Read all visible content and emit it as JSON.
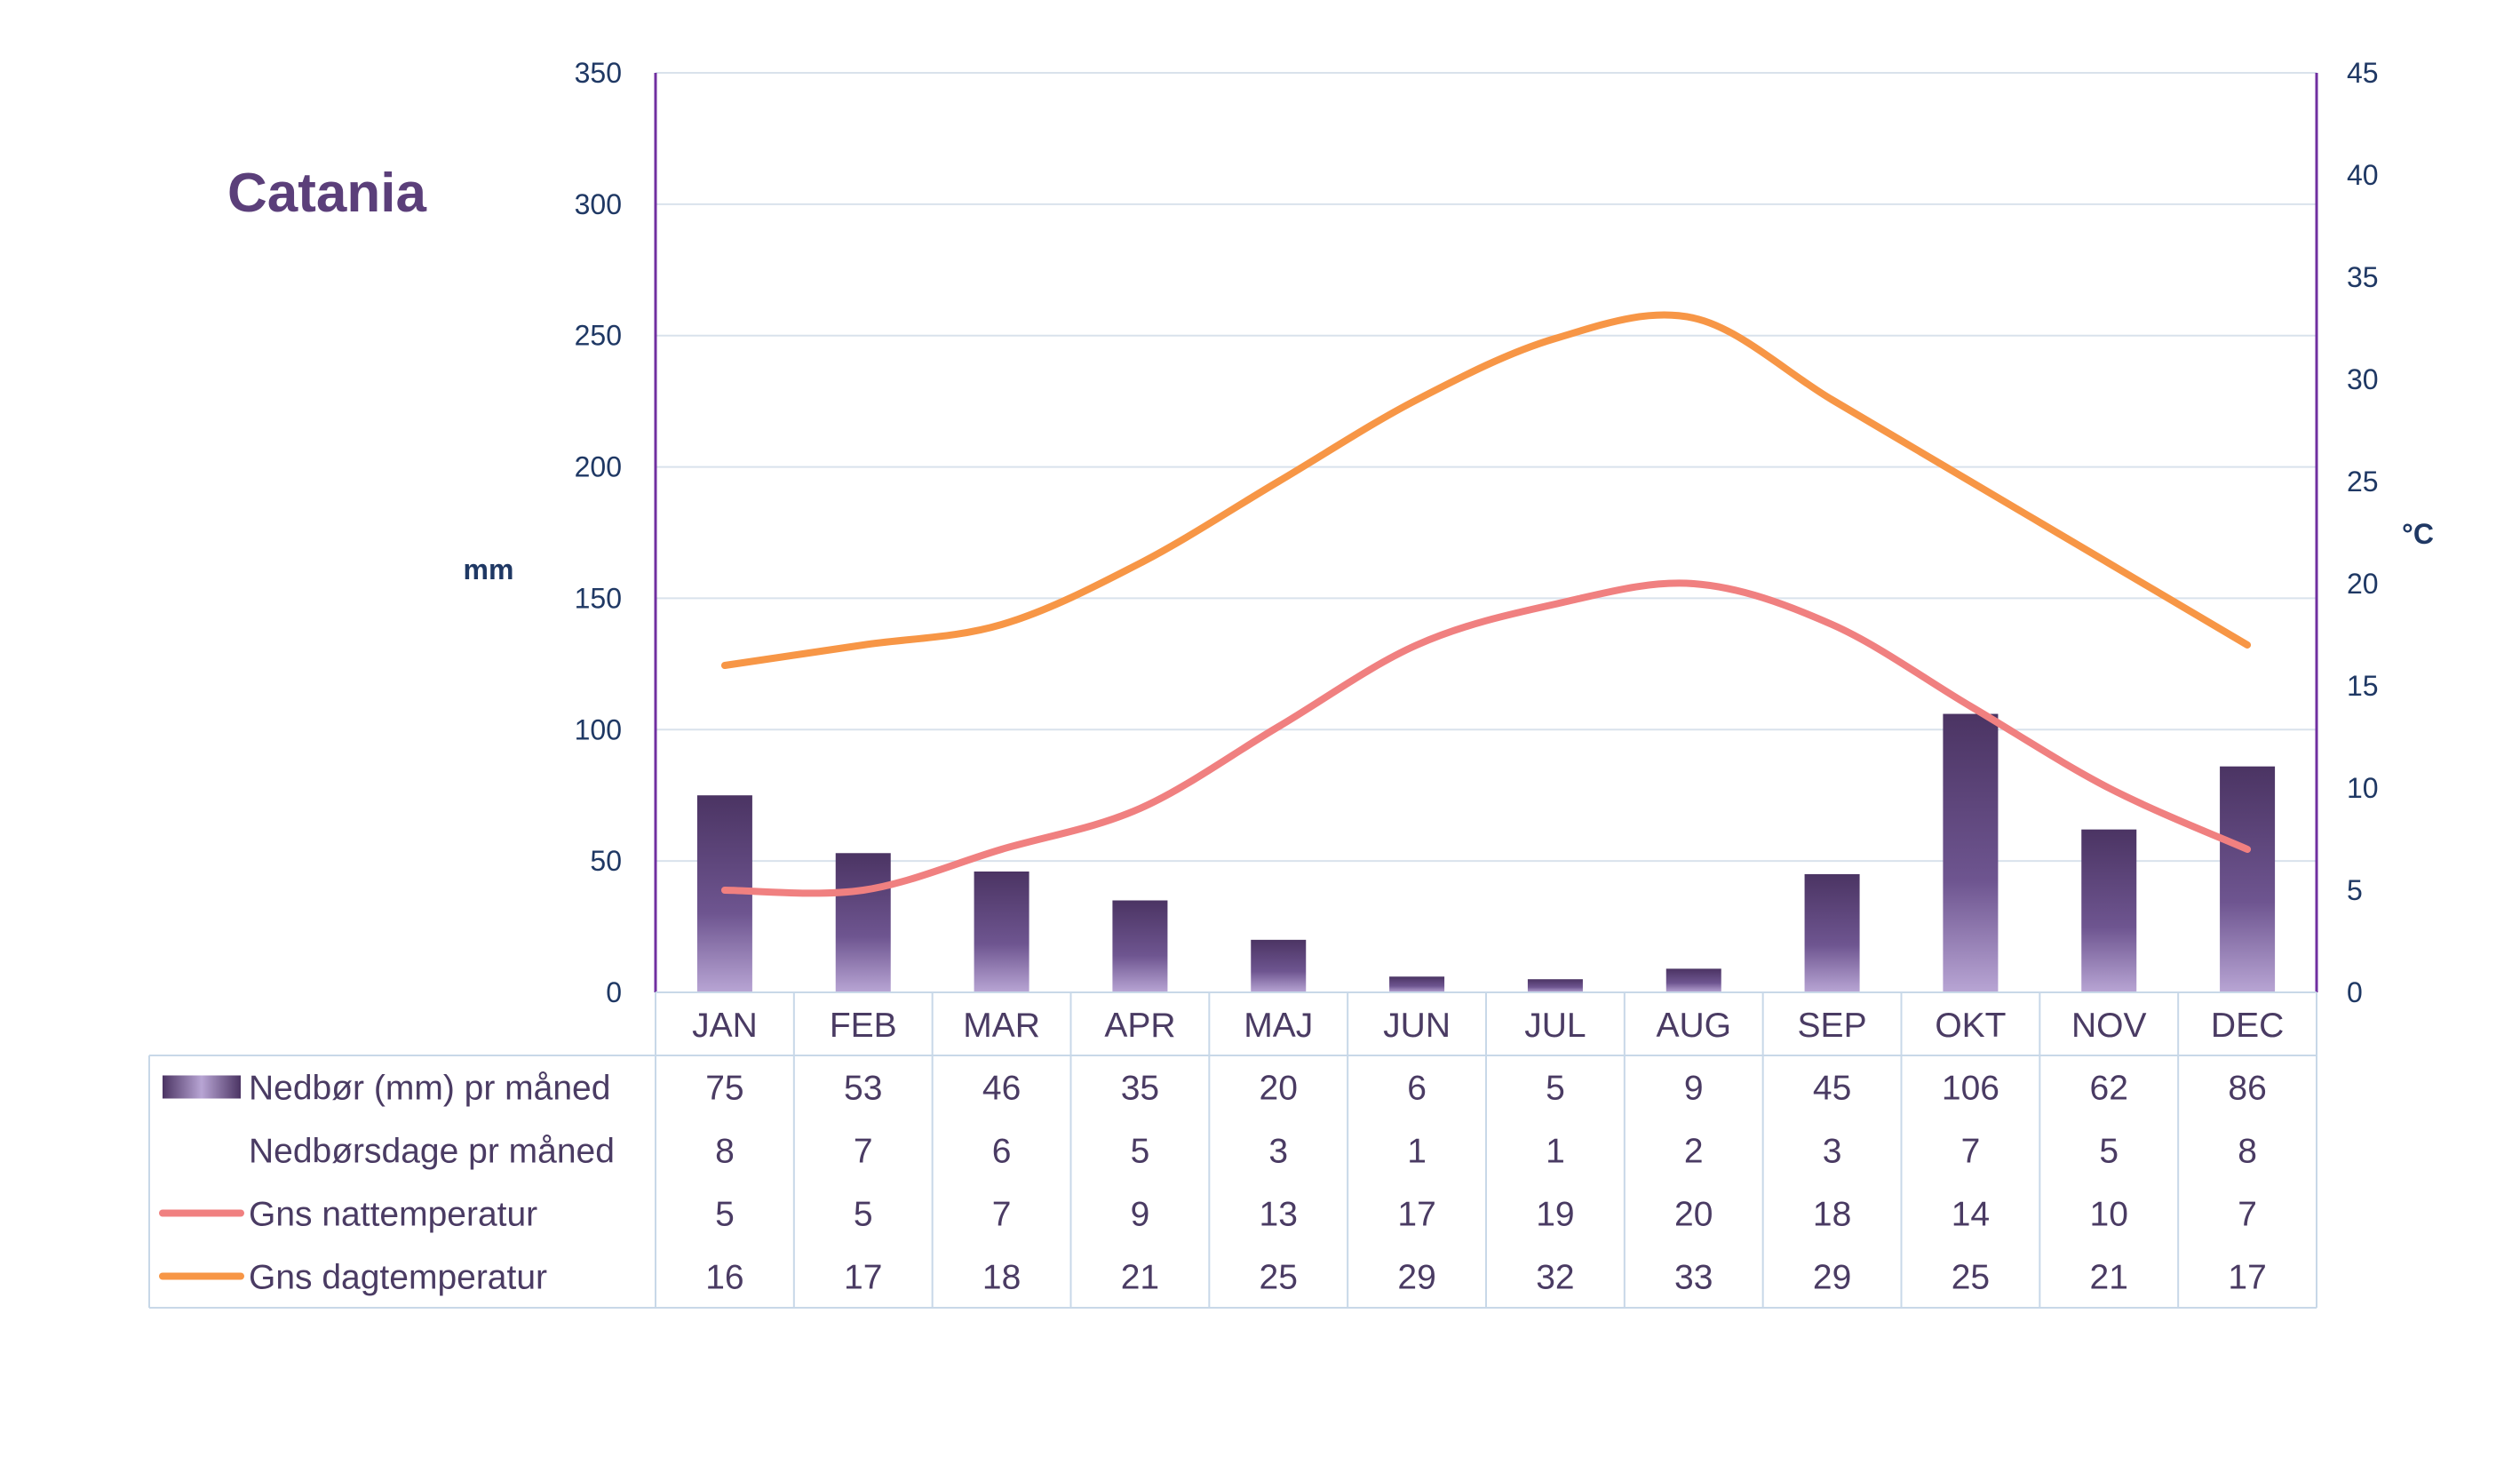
{
  "title": "Catania",
  "colors": {
    "bar": "#5b3f7a",
    "night": "#f08080",
    "day": "#f79646",
    "axis": "#7030a0",
    "grid": "#d9e2ec",
    "table": "#c8d8e8"
  },
  "chart_data": {
    "type": "bar+line",
    "title": "Catania",
    "categories": [
      "JAN",
      "FEB",
      "MAR",
      "APR",
      "MAJ",
      "JUN",
      "JUL",
      "AUG",
      "SEP",
      "OKT",
      "NOV",
      "DEC"
    ],
    "left_axis": {
      "label": "mm",
      "range": [
        0,
        350
      ],
      "ticks": [
        0,
        50,
        100,
        150,
        200,
        250,
        300,
        350
      ]
    },
    "right_axis": {
      "label": "°C",
      "range": [
        0,
        45
      ],
      "ticks": [
        0,
        5,
        10,
        15,
        20,
        25,
        30,
        35,
        40,
        45
      ]
    },
    "grid": true,
    "series": [
      {
        "name": "Nedbør (mm) pr måned",
        "type": "bar",
        "axis": "left",
        "values": [
          75,
          53,
          46,
          35,
          20,
          6,
          5,
          9,
          45,
          106,
          62,
          86
        ]
      },
      {
        "name": "Nedbørsdage pr måned",
        "type": "table",
        "values": [
          8,
          7,
          6,
          5,
          3,
          1,
          1,
          2,
          3,
          7,
          5,
          8
        ]
      },
      {
        "name": "Gns nattemperatur",
        "type": "line",
        "axis": "right",
        "values": [
          5,
          5,
          7,
          9,
          13,
          17,
          19,
          20,
          18,
          14,
          10,
          7
        ]
      },
      {
        "name": "Gns dagtemperatur",
        "type": "line",
        "axis": "right",
        "values": [
          16,
          17,
          18,
          21,
          25,
          29,
          32,
          33,
          29,
          25,
          21,
          17
        ]
      }
    ]
  }
}
